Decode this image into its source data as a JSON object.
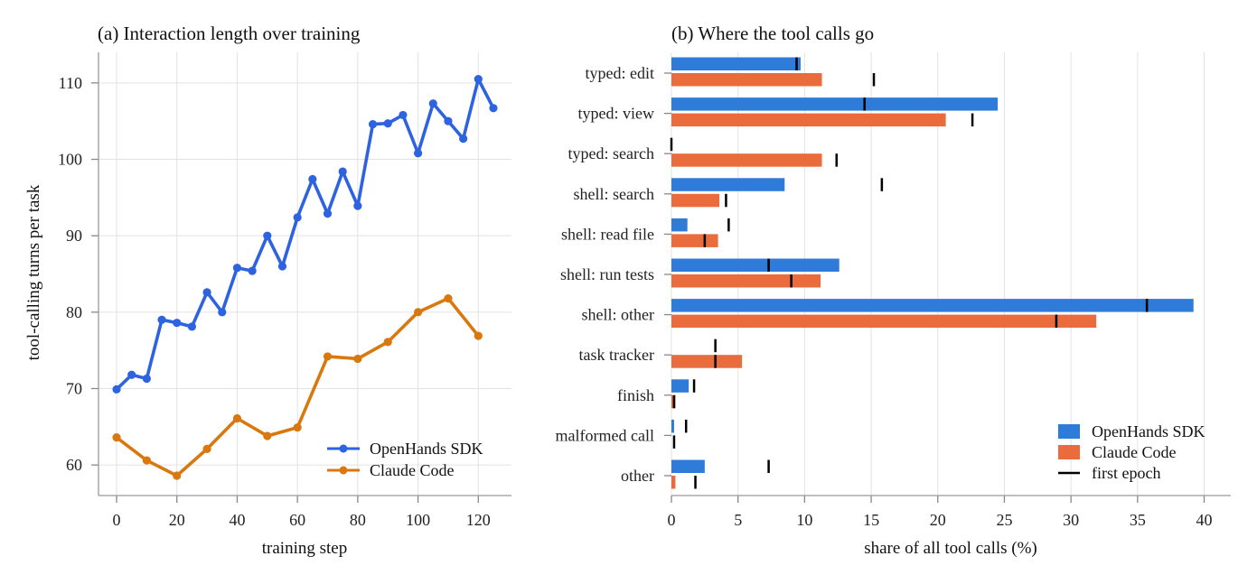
{
  "chart_data": [
    {
      "type": "line",
      "title": "(a) Interaction length over training",
      "xlabel": "training step",
      "ylabel": "tool-calling turns per task",
      "xlim": [
        -6,
        131
      ],
      "ylim": [
        56,
        114
      ],
      "xticks": [
        0,
        20,
        40,
        60,
        80,
        100,
        120
      ],
      "yticks": [
        60,
        70,
        80,
        90,
        100,
        110
      ],
      "grid": true,
      "legend": "lower-right",
      "series": [
        {
          "name": "OpenHands SDK",
          "color": "#2d62e0",
          "x": [
            0,
            5,
            10,
            15,
            20,
            25,
            30,
            35,
            40,
            45,
            50,
            55,
            60,
            65,
            70,
            75,
            80,
            85,
            90,
            95,
            100,
            105,
            110,
            115,
            120,
            125
          ],
          "y": [
            69.9,
            71.8,
            71.3,
            79.0,
            78.6,
            78.1,
            82.6,
            80.0,
            85.8,
            85.4,
            90.0,
            86.0,
            92.4,
            97.4,
            92.9,
            98.4,
            93.9,
            104.6,
            104.7,
            105.8,
            100.8,
            107.3,
            105.0,
            102.7,
            110.5,
            106.7
          ]
        },
        {
          "name": "Claude Code",
          "color": "#d8780f",
          "x": [
            0,
            10,
            20,
            30,
            40,
            50,
            60,
            70,
            80,
            90,
            100,
            110,
            120
          ],
          "y": [
            63.6,
            60.6,
            58.6,
            62.1,
            66.1,
            63.8,
            64.9,
            74.2,
            73.9,
            76.1,
            80.0,
            81.8,
            76.9
          ]
        }
      ]
    },
    {
      "type": "bar",
      "orientation": "horizontal",
      "title": "(b) Where the tool calls go",
      "xlabel": "share of all tool calls (%)",
      "xlim": [
        0,
        42
      ],
      "xticks": [
        0,
        5,
        10,
        15,
        20,
        25,
        30,
        35,
        40
      ],
      "grid": true,
      "legend": "lower-right",
      "categories": [
        "typed: edit",
        "typed: view",
        "typed: search",
        "shell: search",
        "shell: read file",
        "shell: run tests",
        "shell: other",
        "task tracker",
        "finish",
        "malformed call",
        "other"
      ],
      "series": [
        {
          "name": "OpenHands SDK",
          "color": "#2f7bd9",
          "values": [
            9.7,
            24.5,
            0.0,
            8.5,
            1.2,
            12.6,
            39.2,
            0.0,
            1.3,
            0.2,
            2.5
          ],
          "first_epoch": [
            9.4,
            14.5,
            0.0,
            15.8,
            4.3,
            7.3,
            35.7,
            3.3,
            1.7,
            1.1,
            7.3
          ]
        },
        {
          "name": "Claude Code",
          "color": "#ea6b3b",
          "values": [
            11.3,
            20.6,
            11.3,
            3.6,
            3.5,
            11.2,
            31.9,
            5.3,
            0.3,
            0.0,
            0.3
          ],
          "first_epoch": [
            15.2,
            22.6,
            12.4,
            4.1,
            2.5,
            9.0,
            28.9,
            3.3,
            0.2,
            0.2,
            1.8
          ]
        }
      ],
      "marker_legend": "first epoch",
      "marker_color": "#000000"
    }
  ]
}
